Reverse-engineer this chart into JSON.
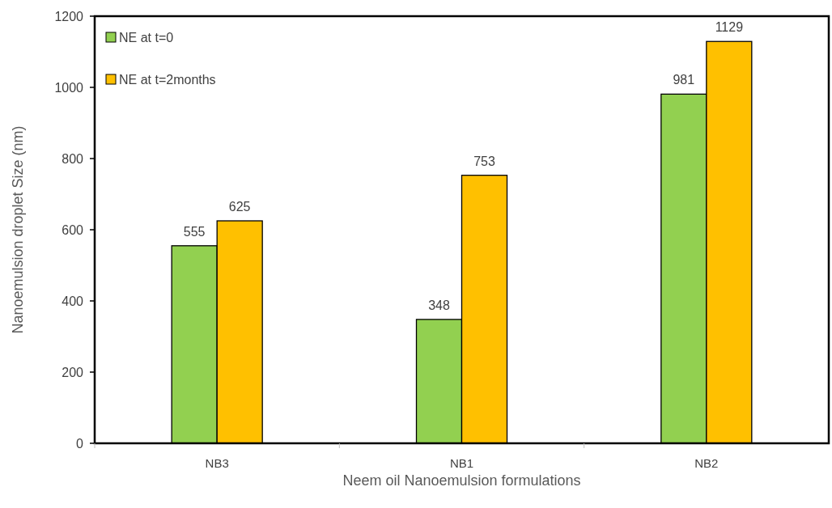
{
  "chart_data": {
    "type": "bar",
    "xlabel": "Neem oil Nanoemulsion formulations",
    "ylabel": "Nanoemulsion droplet Size (nm)",
    "categories": [
      "NB3",
      "NB1",
      "NB2"
    ],
    "series": [
      {
        "name": "NE at t=0",
        "color": "#92d050",
        "values": [
          555,
          348,
          981
        ]
      },
      {
        "name": "NE at t=2months",
        "color": "#ffc000",
        "values": [
          625,
          753,
          1129
        ]
      }
    ],
    "ylim": [
      0,
      1200
    ],
    "yticks": [
      0,
      200,
      400,
      600,
      800,
      1000,
      1200
    ],
    "data_labels": true,
    "legend": "top left",
    "grid": false
  }
}
